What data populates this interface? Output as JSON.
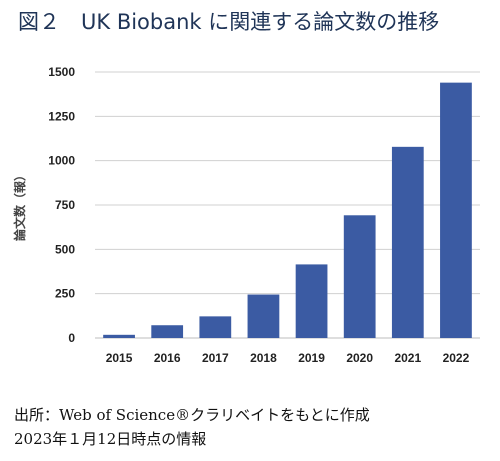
{
  "title": "図２　UK Biobank に関連する論文数の推移",
  "chart_data": {
    "type": "bar",
    "categories": [
      "2015",
      "2016",
      "2017",
      "2018",
      "2019",
      "2020",
      "2021",
      "2022"
    ],
    "values": [
      18,
      72,
      122,
      245,
      415,
      692,
      1078,
      1440
    ],
    "ylabel": "論文数（報）",
    "ylim": [
      0,
      1500
    ],
    "yticks": [
      0,
      250,
      500,
      750,
      1000,
      1250,
      1500
    ],
    "grid": true,
    "bar_color": "#3b5ba3"
  },
  "notes": {
    "source": "出所：Web of Science®クラリベイトをもとに作成",
    "date": "2023年１月12日時点の情報"
  }
}
